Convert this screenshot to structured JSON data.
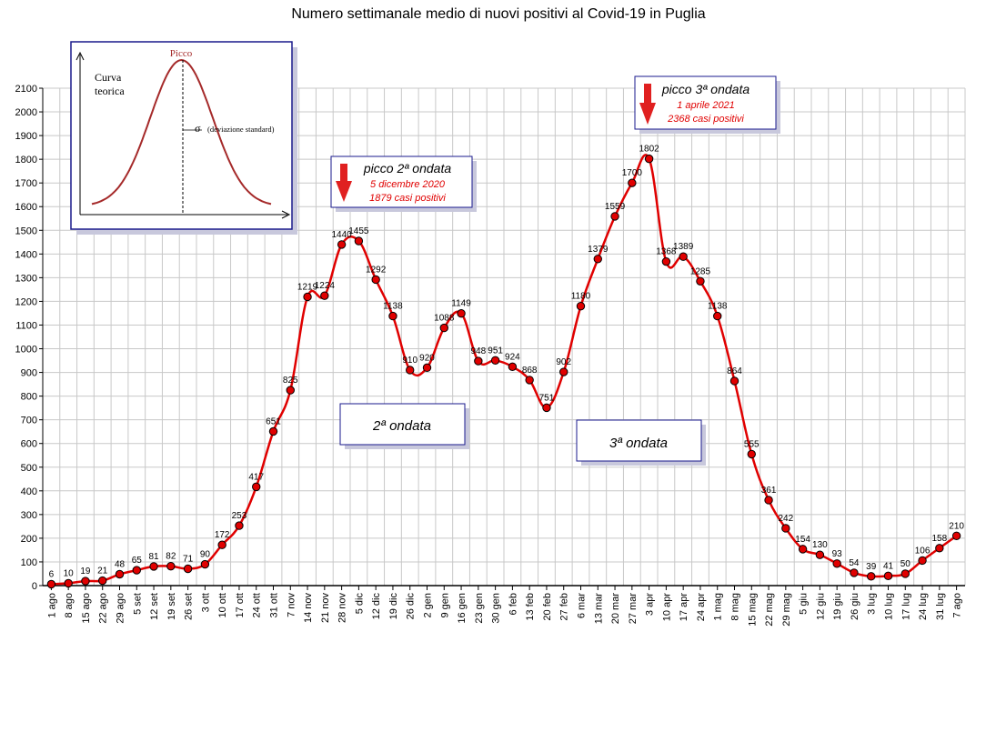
{
  "chart_data": {
    "type": "line",
    "title": "Numero settimanale medio di nuovi positivi al Covid-19 in Puglia",
    "ylim": [
      0,
      2100
    ],
    "ytick_step": 100,
    "grid": true,
    "colors": {
      "line": "#e00000",
      "marker": "#e00000",
      "marker_edge": "#000000",
      "grid": "#c8c8c8",
      "arrow": "#e02020",
      "box_border": "#1a1a8c"
    },
    "x": [
      "1 ago",
      "8 ago",
      "15 ago",
      "22 ago",
      "29 ago",
      "5 set",
      "12 set",
      "19 set",
      "26 set",
      "3 ott",
      "10 ott",
      "17 ott",
      "24 ott",
      "31 ott",
      "7 nov",
      "14 nov",
      "21 nov",
      "28 nov",
      "5 dic",
      "12 dic",
      "19 dic",
      "26 dic",
      "2 gen",
      "9 gen",
      "16 gen",
      "23 gen",
      "30 gen",
      "6 feb",
      "13 feb",
      "20 feb",
      "27 feb",
      "6 mar",
      "13 mar",
      "20 mar",
      "27 mar",
      "3 apr",
      "10 apr",
      "17 apr",
      "24 apr",
      "1 mag",
      "8 mag",
      "15 mag",
      "22 mag",
      "29 mag",
      "5 giu",
      "12 giu",
      "19 giu",
      "26 giu",
      "3 lug",
      "10 lug",
      "17 lug",
      "24 lug",
      "31 lug",
      "7 ago"
    ],
    "values": [
      6,
      10,
      19,
      21,
      48,
      65,
      81,
      82,
      71,
      90,
      172,
      253,
      417,
      651,
      825,
      1219,
      1224,
      1440,
      1455,
      1292,
      1138,
      910,
      920,
      1088,
      1149,
      948,
      951,
      924,
      868,
      751,
      902,
      1180,
      1379,
      1559,
      1700,
      1802,
      1368,
      1389,
      1285,
      1138,
      864,
      555,
      361,
      242,
      154,
      130,
      93,
      54,
      39,
      41,
      50,
      106,
      158,
      210
    ],
    "labels": [
      "6",
      "10",
      "19",
      "21",
      "48",
      "65",
      "81",
      "82",
      "71",
      "90",
      "172",
      "253",
      "417",
      "651",
      "825",
      "1219",
      "1224",
      "1440",
      "1455",
      "1292",
      "1138",
      "910",
      "920",
      "1088",
      "1149",
      "948",
      "951",
      "924",
      "868",
      "751",
      "902",
      "1180",
      "1379",
      "1559",
      "1700",
      "1802",
      "1368",
      "1389",
      "1285",
      "1138",
      "864",
      "555",
      "361",
      "242",
      "154",
      "130",
      "93",
      "54",
      "39",
      "41",
      "50",
      "106",
      "158",
      "210"
    ],
    "annotations": {
      "peak2": {
        "title": "picco 2ª ondata",
        "date": "5 dicembre 2020",
        "cases": "1879 casi positivi"
      },
      "peak3": {
        "title": "picco 3ª ondata",
        "date": "1 aprile 2021",
        "cases": "2368 casi positivi"
      },
      "wave2": "2ª ondata",
      "wave3": "3ª ondata"
    },
    "inset": {
      "peak_label": "Picco",
      "curve_label_1": "Curva",
      "curve_label_2": "teorica",
      "sigma": "σ",
      "sigma_label": "(deviazione standard)"
    }
  }
}
